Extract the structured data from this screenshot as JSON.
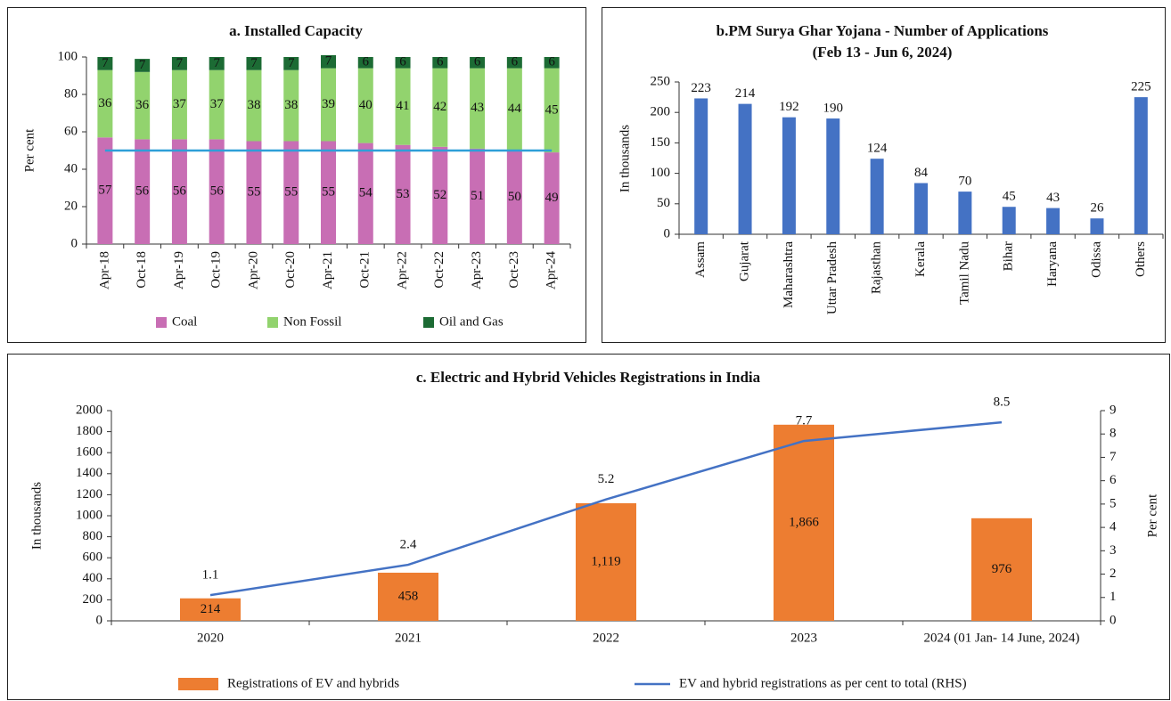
{
  "chart_data": [
    {
      "type": "bar",
      "stacked": true,
      "title": "a. Installed Capacity",
      "ylabel": "Per cent",
      "categories": [
        "Apr-18",
        "Oct-18",
        "Apr-19",
        "Oct-19",
        "Apr-20",
        "Oct-20",
        "Apr-21",
        "Oct-21",
        "Apr-22",
        "Oct-22",
        "Apr-23",
        "Oct-23",
        "Apr-24"
      ],
      "series": [
        {
          "name": "Coal",
          "color": "#c86eb4",
          "values": [
            57,
            56,
            56,
            56,
            55,
            55,
            55,
            54,
            53,
            52,
            51,
            50,
            49
          ]
        },
        {
          "name": "Non Fossil",
          "color": "#92d36e",
          "values": [
            36,
            36,
            37,
            37,
            38,
            38,
            39,
            40,
            41,
            42,
            43,
            44,
            45
          ]
        },
        {
          "name": "Oil and Gas",
          "color": "#1c6b34",
          "values": [
            7,
            7,
            7,
            7,
            7,
            7,
            7,
            6,
            6,
            6,
            6,
            6,
            6
          ]
        }
      ],
      "reference_line": {
        "value": 50,
        "color": "#2e9fd8"
      },
      "ylim": [
        0,
        100
      ],
      "yticks": [
        0,
        20,
        40,
        60,
        80,
        100
      ],
      "legend": "bottom"
    },
    {
      "type": "bar",
      "title": "b.PM Surya Ghar Yojana - Number of Applications",
      "subtitle": "(Feb 13 - Jun 6, 2024)",
      "ylabel": "In thousands",
      "categories": [
        "Assam",
        "Gujarat",
        "Maharashtra",
        "Uttar Pradesh",
        "Rajasthan",
        "Kerala",
        "Tamil Nadu",
        "Bihar",
        "Haryana",
        "Odissa",
        "Others"
      ],
      "values": [
        223,
        214,
        192,
        190,
        124,
        84,
        70,
        45,
        43,
        26,
        225
      ],
      "color": "#4472c4",
      "ylim": [
        0,
        250
      ],
      "yticks": [
        0,
        50,
        100,
        150,
        200,
        250
      ]
    },
    {
      "type": "combo",
      "title": "c. Electric and Hybrid Vehicles Registrations in India",
      "ylabel": "In thousands",
      "y2label": "Per cent",
      "categories": [
        "2020",
        "2021",
        "2022",
        "2023",
        "2024 (01 Jan- 14 June, 2024)"
      ],
      "series": [
        {
          "name": "Registrations of EV and hybrids",
          "type": "bar",
          "color": "#ed7d31",
          "values": [
            214,
            458,
            1119,
            1866,
            976
          ],
          "value_labels": [
            "214",
            "458",
            "1,119",
            "1,866",
            "976"
          ]
        },
        {
          "name": "EV and hybrid registrations as per cent to total (RHS)",
          "type": "line",
          "axis": "y2",
          "color": "#4472c4",
          "values": [
            1.1,
            2.4,
            5.2,
            7.7,
            8.5
          ]
        }
      ],
      "ylim": [
        0,
        2000
      ],
      "yticks": [
        0,
        200,
        400,
        600,
        800,
        1000,
        1200,
        1400,
        1600,
        1800,
        2000
      ],
      "y2lim": [
        0,
        9
      ],
      "y2ticks": [
        0,
        1,
        2,
        3,
        4,
        5,
        6,
        7,
        8,
        9
      ],
      "legend": "bottom"
    }
  ]
}
